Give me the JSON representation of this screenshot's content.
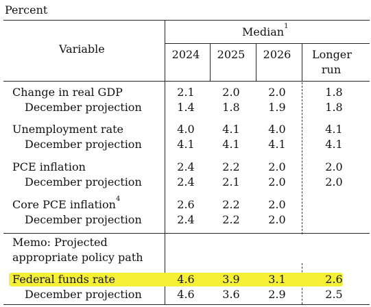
{
  "unit_label": "Percent",
  "header": {
    "variable": "Variable",
    "median": "Median",
    "median_note": "1",
    "columns": [
      "2024",
      "2025",
      "2026"
    ],
    "longer_run_line1": "Longer",
    "longer_run_line2": "run"
  },
  "rows": [
    {
      "label": "Change in real GDP",
      "values": [
        "2.1",
        "2.0",
        "2.0"
      ],
      "longer": "1.8",
      "sub_label": "December projection",
      "sub_values": [
        "1.4",
        "1.8",
        "1.9"
      ],
      "sub_longer": "1.8"
    },
    {
      "label": "Unemployment rate",
      "values": [
        "4.0",
        "4.1",
        "4.0"
      ],
      "longer": "4.1",
      "sub_label": "December projection",
      "sub_values": [
        "4.1",
        "4.1",
        "4.1"
      ],
      "sub_longer": "4.1"
    },
    {
      "label": "PCE inflation",
      "values": [
        "2.4",
        "2.2",
        "2.0"
      ],
      "longer": "2.0",
      "sub_label": "December projection",
      "sub_values": [
        "2.4",
        "2.1",
        "2.0"
      ],
      "sub_longer": "2.0"
    },
    {
      "label": "Core PCE inflation",
      "note": "4",
      "values": [
        "2.6",
        "2.2",
        "2.0"
      ],
      "longer": "",
      "sub_label": "December projection",
      "sub_values": [
        "2.4",
        "2.2",
        "2.0"
      ],
      "sub_longer": ""
    }
  ],
  "memo": {
    "line1": "Memo: Projected",
    "line2": "appropriate policy path"
  },
  "policy": {
    "label": "Federal funds rate",
    "values": [
      "4.6",
      "3.9",
      "3.1"
    ],
    "longer": "2.6",
    "sub_label": "December projection",
    "sub_values": [
      "4.6",
      "3.6",
      "2.9"
    ],
    "sub_longer": "2.5"
  },
  "colors": {
    "highlight": "#f6f035",
    "rules": "#222222"
  }
}
